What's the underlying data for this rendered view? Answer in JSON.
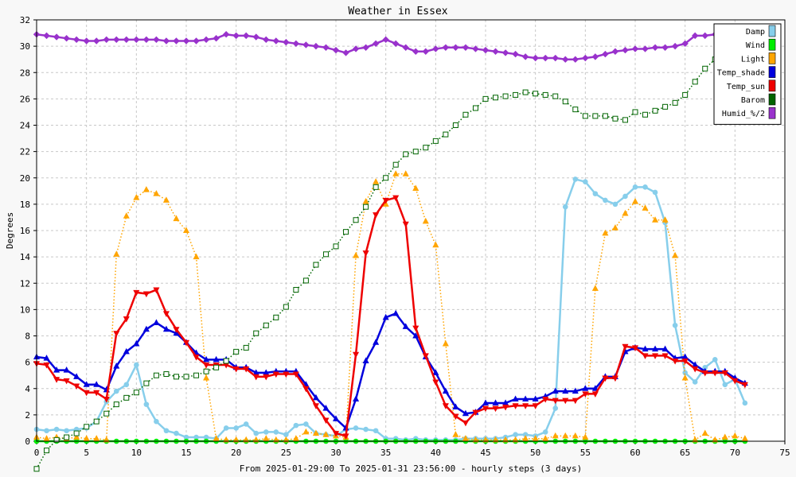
{
  "chart_data": {
    "type": "line",
    "title": "Weather in Essex",
    "xlabel": "From 2025-01-29:00 To 2025-01-31 23:56:00 - hourly steps (3 days)",
    "ylabel": "Degrees",
    "xlim": [
      0,
      75
    ],
    "ylim": [
      0,
      32
    ],
    "x_ticks": [
      0,
      5,
      10,
      15,
      20,
      25,
      30,
      35,
      40,
      45,
      50,
      55,
      60,
      65,
      70,
      75
    ],
    "y_ticks": [
      0,
      2,
      4,
      6,
      8,
      10,
      12,
      14,
      16,
      18,
      20,
      22,
      24,
      26,
      28,
      30,
      32
    ],
    "grid": true,
    "legend_position": "top-right",
    "series": [
      {
        "name": "Damp",
        "color": "#87ceeb",
        "style": "solid",
        "marker": "circle",
        "values": [
          0.9,
          0.8,
          0.9,
          0.8,
          0.9,
          1.0,
          1.5,
          3.0,
          3.8,
          4.3,
          5.8,
          2.8,
          1.5,
          0.8,
          0.6,
          0.3,
          0.3,
          0.3,
          0.2,
          1.0,
          1.0,
          1.3,
          0.6,
          0.7,
          0.7,
          0.5,
          1.2,
          1.3,
          0.6,
          0.5,
          0.4,
          0.9,
          1.0,
          0.9,
          0.8,
          0.2,
          0.2,
          0.1,
          0.2,
          0.1,
          0.1,
          0.1,
          0.1,
          0.2,
          0.2,
          0.2,
          0.2,
          0.3,
          0.5,
          0.5,
          0.4,
          0.7,
          2.5,
          17.8,
          19.9,
          19.7,
          18.8,
          18.3,
          18.0,
          18.6,
          19.3,
          19.3,
          18.9,
          16.6,
          8.8,
          5.2,
          4.5,
          5.6,
          6.2,
          4.3,
          4.7,
          2.9
        ]
      },
      {
        "name": "Wind",
        "color": "#00ee00",
        "style": "solid",
        "marker": "circle",
        "values": [
          0,
          0,
          0,
          0,
          0,
          0,
          0,
          0,
          0,
          0,
          0,
          0,
          0,
          0,
          0,
          0,
          0,
          0,
          0,
          0,
          0,
          0,
          0,
          0,
          0,
          0,
          0,
          0,
          0,
          0,
          0,
          0,
          0,
          0,
          0,
          0,
          0,
          0,
          0,
          0,
          0,
          0,
          0,
          0,
          0,
          0,
          0,
          0,
          0,
          0,
          0,
          0,
          0,
          0,
          0,
          0,
          0,
          0,
          0,
          0,
          0,
          0,
          0,
          0,
          0,
          0,
          0,
          0,
          0,
          0,
          0,
          0
        ]
      },
      {
        "name": "Light",
        "color": "#ffa500",
        "style": "dotted",
        "marker": "triangle-up",
        "values": [
          0.3,
          0.2,
          0.3,
          0.2,
          0.3,
          0.2,
          0.2,
          0.1,
          14.2,
          17.1,
          18.5,
          19.1,
          18.8,
          18.3,
          16.9,
          16.0,
          14.0,
          4.8,
          0.2,
          0.1,
          0.1,
          0.1,
          0.1,
          0.2,
          0.1,
          0.1,
          0.2,
          0.7,
          0.6,
          0.5,
          0.4,
          0.3,
          14.1,
          18.2,
          19.7,
          18.0,
          20.3,
          20.3,
          19.2,
          16.7,
          14.9,
          7.4,
          0.5,
          0.2,
          0.1,
          0.1,
          0.1,
          0.1,
          0.1,
          0.2,
          0.2,
          0.2,
          0.4,
          0.4,
          0.4,
          0.3,
          11.6,
          15.8,
          16.2,
          17.3,
          18.2,
          17.7,
          16.8,
          16.8,
          14.1,
          4.8,
          0.1,
          0.6,
          0.1,
          0.3,
          0.4,
          0.2
        ]
      },
      {
        "name": "Temp_shade",
        "color": "#0000dd",
        "style": "solid",
        "marker": "triangle-up",
        "values": [
          6.4,
          6.3,
          5.4,
          5.4,
          4.9,
          4.3,
          4.3,
          3.9,
          5.7,
          6.8,
          7.4,
          8.5,
          9.0,
          8.5,
          8.2,
          7.5,
          6.7,
          6.2,
          6.2,
          6.2,
          5.6,
          5.6,
          5.2,
          5.2,
          5.3,
          5.3,
          5.3,
          4.3,
          3.3,
          2.5,
          1.7,
          1.0,
          3.2,
          6.1,
          7.5,
          9.4,
          9.7,
          8.7,
          8.0,
          6.4,
          5.2,
          3.8,
          2.6,
          2.1,
          2.2,
          2.9,
          2.9,
          2.9,
          3.2,
          3.2,
          3.2,
          3.4,
          3.8,
          3.8,
          3.8,
          4.0,
          4.0,
          4.9,
          4.9,
          6.8,
          7.1,
          7.0,
          7.0,
          7.0,
          6.3,
          6.4,
          5.8,
          5.3,
          5.3,
          5.3,
          4.8,
          4.4
        ]
      },
      {
        "name": "Temp_sun",
        "color": "#ee0000",
        "style": "solid",
        "marker": "triangle-down",
        "values": [
          5.9,
          5.8,
          4.7,
          4.6,
          4.2,
          3.7,
          3.7,
          3.2,
          8.2,
          9.3,
          11.3,
          11.2,
          11.5,
          9.7,
          8.5,
          7.5,
          6.4,
          5.8,
          5.8,
          5.8,
          5.5,
          5.5,
          4.9,
          4.9,
          5.1,
          5.1,
          5.1,
          4.0,
          2.7,
          1.6,
          0.6,
          0.4,
          6.6,
          14.3,
          17.2,
          18.3,
          18.5,
          16.5,
          8.6,
          6.5,
          4.5,
          2.7,
          1.9,
          1.4,
          2.2,
          2.5,
          2.5,
          2.6,
          2.7,
          2.7,
          2.7,
          3.2,
          3.1,
          3.1,
          3.1,
          3.6,
          3.6,
          4.8,
          4.8,
          7.2,
          7.1,
          6.5,
          6.5,
          6.5,
          6.1,
          6.1,
          5.5,
          5.2,
          5.2,
          5.2,
          4.6,
          4.3
        ]
      },
      {
        "name": "Barom",
        "color": "#006400",
        "style": "dotted",
        "marker": "square",
        "values": [
          -2.1,
          -0.7,
          0.1,
          0.3,
          0.6,
          1.1,
          1.5,
          2.1,
          2.8,
          3.3,
          3.7,
          4.4,
          5.0,
          5.1,
          4.9,
          4.9,
          5.0,
          5.3,
          5.6,
          6.1,
          6.8,
          7.1,
          8.2,
          8.8,
          9.4,
          10.2,
          11.5,
          12.2,
          13.4,
          14.2,
          14.8,
          15.9,
          16.8,
          17.8,
          19.3,
          20.0,
          21.0,
          21.8,
          22.0,
          22.3,
          22.8,
          23.3,
          24.0,
          24.8,
          25.3,
          26.0,
          26.1,
          26.2,
          26.3,
          26.5,
          26.4,
          26.3,
          26.2,
          25.8,
          25.2,
          24.7,
          24.7,
          24.7,
          24.5,
          24.4,
          25.0,
          24.8,
          25.1,
          25.4,
          25.7,
          26.3,
          27.3,
          28.3,
          29.0,
          29.8,
          30.7,
          31.1
        ]
      },
      {
        "name": "Humid_%/2",
        "color": "#9932cc",
        "style": "solid",
        "marker": "diamond",
        "values": [
          30.9,
          30.8,
          30.7,
          30.6,
          30.5,
          30.4,
          30.4,
          30.5,
          30.5,
          30.5,
          30.5,
          30.5,
          30.5,
          30.4,
          30.4,
          30.4,
          30.4,
          30.5,
          30.6,
          30.9,
          30.8,
          30.8,
          30.7,
          30.5,
          30.4,
          30.3,
          30.2,
          30.1,
          30.0,
          29.9,
          29.7,
          29.5,
          29.8,
          29.9,
          30.2,
          30.5,
          30.2,
          29.9,
          29.6,
          29.6,
          29.8,
          29.9,
          29.9,
          29.9,
          29.8,
          29.7,
          29.6,
          29.5,
          29.4,
          29.2,
          29.1,
          29.1,
          29.1,
          29.0,
          29.0,
          29.1,
          29.2,
          29.4,
          29.6,
          29.7,
          29.8,
          29.8,
          29.9,
          29.9,
          30.0,
          30.2,
          30.8,
          30.8,
          30.9,
          30.8,
          31.0,
          31.0
        ]
      }
    ]
  }
}
